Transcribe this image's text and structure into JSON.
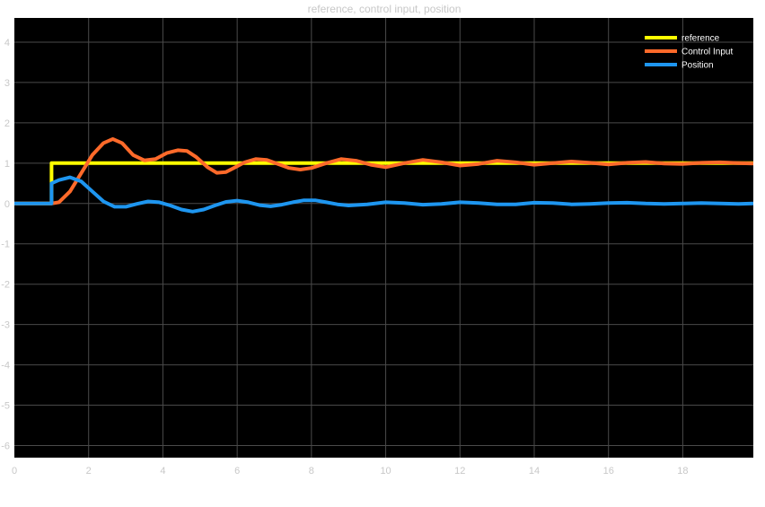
{
  "chart_data": {
    "type": "line",
    "title": "reference, control input, position",
    "xlabel": "",
    "ylabel": "",
    "xlim": [
      0,
      19.9
    ],
    "ylim": [
      -6.3,
      4.6
    ],
    "xticks": [
      0,
      2,
      4,
      6,
      8,
      10,
      12,
      14,
      16,
      18
    ],
    "yticks": [
      4,
      3,
      2,
      1,
      0,
      -1,
      -2,
      -3,
      -4,
      -5,
      -6
    ],
    "grid": true,
    "legend_position": "top-right",
    "background_color": "#000000",
    "grid_color": "#4a4a4a",
    "series": [
      {
        "name": "reference",
        "color": "#ffff00",
        "x": [
          0,
          1,
          1,
          19.9
        ],
        "y": [
          0,
          0,
          1,
          1
        ]
      },
      {
        "name": "Control Input",
        "color": "#ff6a2a",
        "x": [
          0,
          1,
          1.2,
          1.5,
          1.8,
          2.1,
          2.4,
          2.65,
          2.9,
          3.2,
          3.5,
          3.8,
          4.1,
          4.4,
          4.65,
          4.9,
          5.2,
          5.45,
          5.7,
          5.95,
          6.2,
          6.5,
          6.8,
          7.1,
          7.4,
          7.7,
          8.0,
          8.4,
          8.8,
          9.2,
          9.6,
          10.0,
          10.5,
          11.0,
          11.5,
          12.0,
          12.5,
          13.0,
          13.5,
          14.0,
          14.5,
          15.0,
          15.5,
          16.0,
          16.5,
          17.0,
          17.5,
          18.0,
          18.5,
          19.0,
          19.5,
          19.9
        ],
        "y": [
          0,
          0,
          0.03,
          0.3,
          0.75,
          1.2,
          1.5,
          1.6,
          1.5,
          1.2,
          1.07,
          1.1,
          1.25,
          1.32,
          1.3,
          1.15,
          0.9,
          0.76,
          0.78,
          0.9,
          1.02,
          1.1,
          1.08,
          0.98,
          0.88,
          0.84,
          0.88,
          1.0,
          1.1,
          1.06,
          0.96,
          0.9,
          1.0,
          1.08,
          1.02,
          0.94,
          0.98,
          1.06,
          1.02,
          0.96,
          1.0,
          1.04,
          1.01,
          0.97,
          1.01,
          1.03,
          0.99,
          0.98,
          1.01,
          1.02,
          1.0,
          0.99
        ]
      },
      {
        "name": "Position",
        "color": "#1e96f0",
        "x": [
          0,
          1,
          1,
          1.2,
          1.5,
          1.8,
          2.1,
          2.4,
          2.7,
          3.0,
          3.3,
          3.6,
          3.9,
          4.2,
          4.5,
          4.8,
          5.1,
          5.4,
          5.7,
          6.0,
          6.3,
          6.6,
          6.9,
          7.2,
          7.5,
          7.8,
          8.1,
          8.4,
          8.7,
          9.0,
          9.5,
          10.0,
          10.5,
          11.0,
          11.5,
          12.0,
          12.5,
          13.0,
          13.5,
          14.0,
          14.5,
          15.0,
          15.5,
          16.0,
          16.5,
          17.0,
          17.5,
          18.0,
          18.5,
          19.0,
          19.5,
          19.9
        ],
        "y": [
          0,
          0,
          0.5,
          0.58,
          0.65,
          0.55,
          0.3,
          0.05,
          -0.08,
          -0.08,
          -0.01,
          0.05,
          0.03,
          -0.05,
          -0.15,
          -0.2,
          -0.15,
          -0.05,
          0.04,
          0.07,
          0.03,
          -0.04,
          -0.07,
          -0.03,
          0.03,
          0.08,
          0.08,
          0.03,
          -0.02,
          -0.05,
          -0.02,
          0.03,
          0.01,
          -0.03,
          -0.01,
          0.03,
          0.01,
          -0.02,
          -0.02,
          0.02,
          0.01,
          -0.02,
          -0.01,
          0.01,
          0.02,
          0.0,
          -0.01,
          0.0,
          0.01,
          0.0,
          -0.01,
          0.0
        ]
      }
    ]
  }
}
